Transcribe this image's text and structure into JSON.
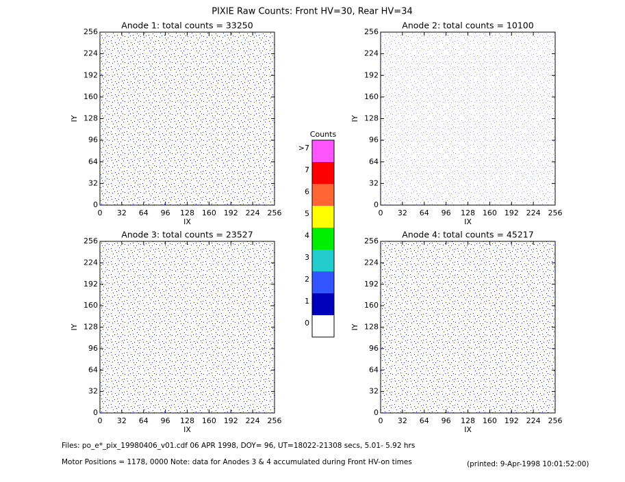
{
  "title": "PIXIE Raw Counts:  Front HV=30, Rear HV=34",
  "chart_data": [
    {
      "type": "heatmap",
      "title": "Anode 1: total counts = 33250",
      "xlabel": "IX",
      "ylabel": "IY",
      "xlim": [
        0,
        256
      ],
      "ylim": [
        0,
        256
      ],
      "xticks": [
        0,
        32,
        64,
        96,
        128,
        160,
        192,
        224,
        256
      ],
      "yticks": [
        0,
        32,
        64,
        96,
        128,
        160,
        192,
        224,
        256
      ]
    },
    {
      "type": "heatmap",
      "title": "Anode 2: total counts = 10100",
      "xlabel": "IX",
      "ylabel": "IY",
      "xlim": [
        0,
        256
      ],
      "ylim": [
        0,
        256
      ],
      "xticks": [
        0,
        32,
        64,
        96,
        128,
        160,
        192,
        224,
        256
      ],
      "yticks": [
        0,
        32,
        64,
        96,
        128,
        160,
        192,
        224,
        256
      ]
    },
    {
      "type": "heatmap",
      "title": "Anode 3: total counts = 23527",
      "xlabel": "IX",
      "ylabel": "IY",
      "xlim": [
        0,
        256
      ],
      "ylim": [
        0,
        256
      ],
      "xticks": [
        0,
        32,
        64,
        96,
        128,
        160,
        192,
        224,
        256
      ],
      "yticks": [
        0,
        32,
        64,
        96,
        128,
        160,
        192,
        224,
        256
      ]
    },
    {
      "type": "heatmap",
      "title": "Anode 4: total counts = 45217",
      "xlabel": "IX",
      "ylabel": "IY",
      "xlim": [
        0,
        256
      ],
      "ylim": [
        0,
        256
      ],
      "xticks": [
        0,
        32,
        64,
        96,
        128,
        160,
        192,
        224,
        256
      ],
      "yticks": [
        0,
        32,
        64,
        96,
        128,
        160,
        192,
        224,
        256
      ]
    }
  ],
  "colorbar": {
    "title": "Counts",
    "levels": [
      {
        "label": ">7",
        "color": "#ff55ff"
      },
      {
        "label": "7",
        "color": "#ff0000"
      },
      {
        "label": "6",
        "color": "#ff6633"
      },
      {
        "label": "5",
        "color": "#ffff00"
      },
      {
        "label": "4",
        "color": "#00ee00"
      },
      {
        "label": "3",
        "color": "#22cccc"
      },
      {
        "label": "2",
        "color": "#3355ff"
      },
      {
        "label": "1",
        "color": "#0000bb"
      },
      {
        "label": "0",
        "color": "#ffffff"
      }
    ]
  },
  "footer": {
    "files": "Files: po_e*_pix_19980406_v01.cdf    06 APR 1998, DOY= 96, UT=18022-21308 secs,  5.01- 5.92 hrs",
    "motor": "Motor Positions = 1178, 0000   Note: data for Anodes 3 & 4 accumulated during Front HV-on times",
    "printed": "(printed:  9-Apr-1998 10:01:52:00)"
  }
}
